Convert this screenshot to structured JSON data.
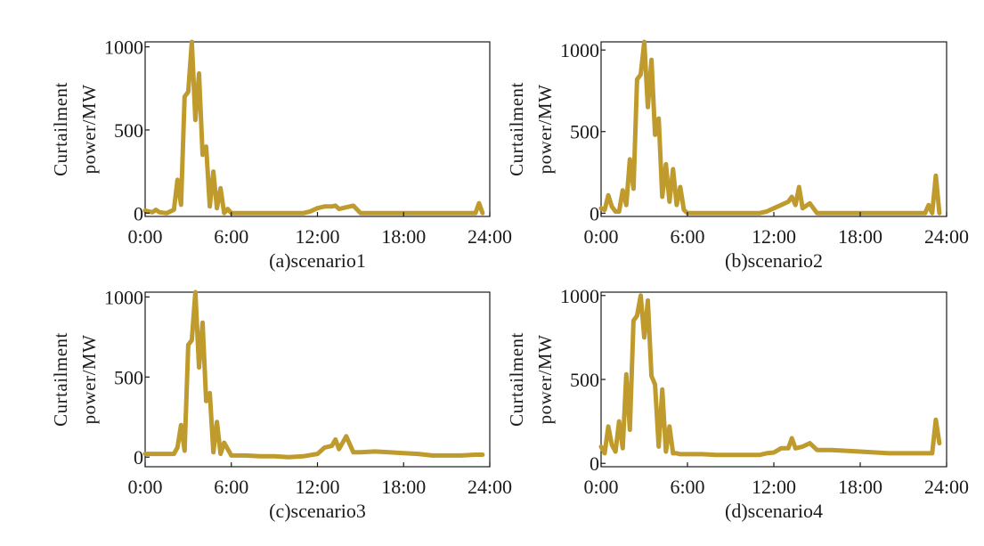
{
  "colors": {
    "series": "#BF9A2C",
    "axis": "#1a1a1a"
  },
  "chart_data": [
    {
      "type": "line",
      "caption": "(a)scenario1",
      "ylabel": [
        "Curtailment",
        "power/MW"
      ],
      "xticks": [
        "0:00",
        "6:00",
        "12:00",
        "18:00",
        "24:00"
      ],
      "xtick_values": [
        0,
        6,
        12,
        18,
        24
      ],
      "yticks": [
        "0",
        "500",
        "1000"
      ],
      "ytick_values": [
        0,
        500,
        1000
      ],
      "xlim": [
        0,
        24
      ],
      "ylim": [
        -20,
        1030
      ],
      "series": [
        {
          "x": [
            0.0,
            0.5,
            0.75,
            1.0,
            1.5,
            2.0,
            2.25,
            2.5,
            2.75,
            3.0,
            3.25,
            3.5,
            3.75,
            4.0,
            4.25,
            4.5,
            4.75,
            5.0,
            5.25,
            5.5,
            5.75,
            6.0,
            6.25,
            6.5,
            7.0,
            8.0,
            10.0,
            11.0,
            11.5,
            12.0,
            12.5,
            13.0,
            13.25,
            13.5,
            14.0,
            14.5,
            15.0,
            16.0,
            18.0,
            20.0,
            22.0,
            23.0,
            23.25,
            23.5
          ],
          "y": [
            15,
            5,
            20,
            5,
            0,
            20,
            200,
            50,
            700,
            730,
            1030,
            560,
            840,
            350,
            400,
            40,
            250,
            30,
            150,
            0,
            25,
            0,
            0,
            0,
            0,
            0,
            0,
            0,
            10,
            30,
            40,
            40,
            45,
            25,
            35,
            45,
            0,
            0,
            0,
            0,
            0,
            0,
            60,
            0
          ]
        }
      ]
    },
    {
      "type": "line",
      "caption": "(b)scenario2",
      "ylabel": [
        "Curtailment",
        "power/MW"
      ],
      "xticks": [
        "0:00",
        "6:00",
        "12:00",
        "18:00",
        "24:00"
      ],
      "xtick_values": [
        0,
        6,
        12,
        18,
        24
      ],
      "yticks": [
        "0",
        "500",
        "1000"
      ],
      "ytick_values": [
        0,
        500,
        1000
      ],
      "xlim": [
        0,
        24
      ],
      "ylim": [
        -20,
        1050
      ],
      "series": [
        {
          "x": [
            0.0,
            0.25,
            0.5,
            0.75,
            1.0,
            1.25,
            1.5,
            1.75,
            2.0,
            2.25,
            2.5,
            2.75,
            3.0,
            3.25,
            3.5,
            3.75,
            4.0,
            4.25,
            4.5,
            4.75,
            5.0,
            5.25,
            5.5,
            5.75,
            6.0,
            6.25,
            6.5,
            7.0,
            8.0,
            10.0,
            11.0,
            11.5,
            12.0,
            12.5,
            13.0,
            13.25,
            13.5,
            13.75,
            14.0,
            14.5,
            15.0,
            16.0,
            18.0,
            20.0,
            22.0,
            22.5,
            22.75,
            23.0,
            23.25,
            23.5
          ],
          "y": [
            30,
            20,
            110,
            40,
            10,
            10,
            140,
            50,
            330,
            150,
            820,
            850,
            1050,
            650,
            940,
            480,
            580,
            100,
            300,
            70,
            270,
            50,
            160,
            20,
            0,
            0,
            0,
            0,
            0,
            0,
            0,
            10,
            30,
            50,
            70,
            100,
            50,
            160,
            30,
            60,
            0,
            0,
            0,
            0,
            0,
            0,
            50,
            0,
            230,
            0
          ]
        }
      ]
    },
    {
      "type": "line",
      "caption": "(c)scenario3",
      "ylabel": [
        "Curtailment",
        "power/MW"
      ],
      "xticks": [
        "0:00",
        "6:00",
        "12:00",
        "18:00",
        "24:00"
      ],
      "xtick_values": [
        0,
        6,
        12,
        18,
        24
      ],
      "yticks": [
        "0",
        "500",
        "1000"
      ],
      "ytick_values": [
        0,
        500,
        1000
      ],
      "xlim": [
        0,
        24
      ],
      "ylim": [
        -60,
        1030
      ],
      "series": [
        {
          "x": [
            0.0,
            1.0,
            2.0,
            2.25,
            2.5,
            2.75,
            3.0,
            3.25,
            3.5,
            3.75,
            4.0,
            4.25,
            4.5,
            4.75,
            5.0,
            5.25,
            5.5,
            6.0,
            7.0,
            8.0,
            9.0,
            10.0,
            11.0,
            12.0,
            12.5,
            13.0,
            13.25,
            13.5,
            14.0,
            14.5,
            15.0,
            16.0,
            17.0,
            18.0,
            19.0,
            20.0,
            21.0,
            22.0,
            23.0,
            23.5
          ],
          "y": [
            20,
            20,
            20,
            60,
            200,
            40,
            700,
            730,
            1030,
            560,
            840,
            350,
            400,
            30,
            220,
            20,
            90,
            10,
            10,
            5,
            5,
            0,
            5,
            20,
            60,
            70,
            110,
            50,
            130,
            30,
            30,
            35,
            30,
            25,
            20,
            10,
            10,
            10,
            15,
            15
          ]
        }
      ]
    },
    {
      "type": "line",
      "caption": "(d)scenario4",
      "ylabel": [
        "Curtailment",
        "power/MW"
      ],
      "xticks": [
        "0:00",
        "6:00",
        "12:00",
        "18:00",
        "24:00"
      ],
      "xtick_values": [
        0,
        6,
        12,
        18,
        24
      ],
      "yticks": [
        "0",
        "500",
        "1000"
      ],
      "ytick_values": [
        0,
        500,
        1000
      ],
      "xlim": [
        0,
        24
      ],
      "ylim": [
        -20,
        1020
      ],
      "series": [
        {
          "x": [
            0.0,
            0.25,
            0.5,
            0.75,
            1.0,
            1.25,
            1.5,
            1.75,
            2.0,
            2.25,
            2.5,
            2.75,
            3.0,
            3.25,
            3.5,
            3.75,
            4.0,
            4.25,
            4.5,
            4.75,
            5.0,
            5.25,
            5.5,
            6.0,
            7.0,
            8.0,
            10.0,
            11.0,
            11.5,
            12.0,
            12.5,
            13.0,
            13.25,
            13.5,
            14.0,
            14.5,
            15.0,
            16.0,
            18.0,
            20.0,
            22.0,
            23.0,
            23.25,
            23.5
          ],
          "y": [
            100,
            60,
            220,
            110,
            70,
            250,
            90,
            530,
            200,
            850,
            880,
            1000,
            750,
            970,
            520,
            470,
            100,
            440,
            70,
            220,
            60,
            60,
            55,
            55,
            55,
            50,
            50,
            50,
            60,
            65,
            90,
            90,
            150,
            90,
            100,
            120,
            80,
            80,
            70,
            60,
            60,
            60,
            260,
            120
          ]
        }
      ]
    }
  ]
}
